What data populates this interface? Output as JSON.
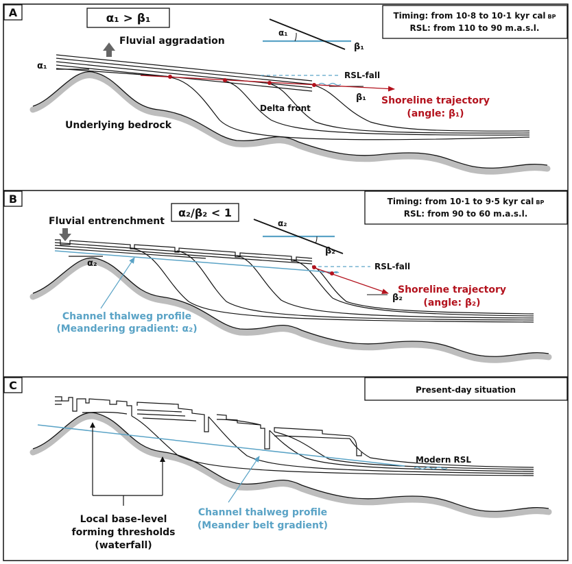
{
  "colors": {
    "red": "#b3121d",
    "blue": "#5aa3c6",
    "bedrock": "#bdbdbd",
    "ink": "#111111"
  },
  "panel_a": {
    "letter": "A",
    "angle_relation": "α₁ > β₁",
    "timing_label": "Timing:",
    "timing_value": " from 10·8 to 10·1 kyr cal",
    "timing_unit": "BP",
    "rsl_label": "RSL:",
    "rsl_value": " from 110 to 90 m.a.s.l.",
    "fluvial": "Fluvial aggradation",
    "alpha": "α₁",
    "beta": "β₁",
    "inset_alpha": "α₁",
    "inset_beta": "β₁",
    "rsl_fall": "RSL-fall",
    "delta_front": "Delta front",
    "bedrock": "Underlying bedrock",
    "shoreline_line1": "Shoreline trajectory",
    "shoreline_line2": "(angle: β₁)"
  },
  "panel_b": {
    "letter": "B",
    "angle_relation": "α₂/β₂ < 1",
    "timing_label": "Timing:",
    "timing_value": " from 10·1 to 9·5 kyr cal",
    "timing_unit": "BP",
    "rsl_label": "RSL:",
    "rsl_value": " from 90 to 60 m.a.s.l.",
    "fluvial": "Fluvial entrenchment",
    "alpha": "α₂",
    "beta": "β₂",
    "inset_alpha": "α₂",
    "inset_beta": "β₂",
    "rsl_fall": "RSL-fall",
    "shoreline_line1": "Shoreline trajectory",
    "shoreline_line2": "(angle: β₂)",
    "thalweg_line1": "Channel thalweg profile",
    "thalweg_line2": "(Meandering gradient: α₂)"
  },
  "panel_c": {
    "letter": "C",
    "situation": "Present-day situation",
    "modern_rsl": "Modern RSL",
    "threshold_line1": "Local base-level",
    "threshold_line2": "forming thresholds",
    "threshold_line3": "(waterfall)",
    "thalweg_line1": "Channel thalweg profile",
    "thalweg_line2": "(Meander belt gradient)"
  }
}
